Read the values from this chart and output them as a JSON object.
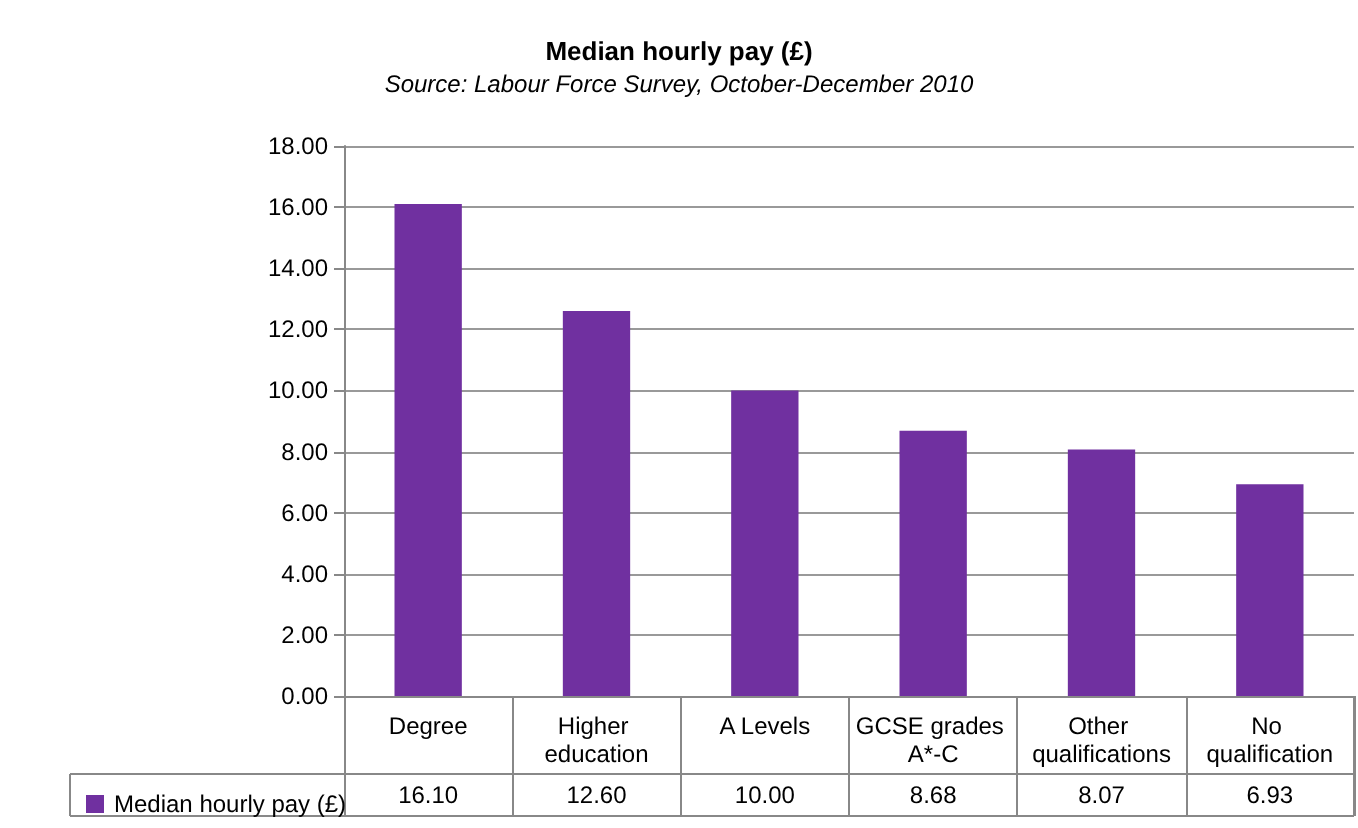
{
  "chart_data": {
    "type": "bar",
    "title": "Median hourly pay (£)",
    "subtitle": "Source: Labour Force Survey, October-December 2010",
    "categories": [
      "Degree",
      "Higher education",
      "A Levels",
      "GCSE grades A*-C",
      "Other qualifications",
      "No qualification"
    ],
    "series": [
      {
        "name": "Median hourly pay (£)",
        "color": "#7030a0",
        "values": [
          16.1,
          12.6,
          10.0,
          8.68,
          8.07,
          6.93
        ],
        "value_labels": [
          "16.10",
          "12.60",
          "10.00",
          "8.68",
          "8.07",
          "6.93"
        ]
      }
    ],
    "ylim": [
      0,
      18
    ],
    "yticks": [
      {
        "value": 0,
        "label": "0.00"
      },
      {
        "value": 2,
        "label": "2.00"
      },
      {
        "value": 4,
        "label": "4.00"
      },
      {
        "value": 6,
        "label": "6.00"
      },
      {
        "value": 8,
        "label": "8.00"
      },
      {
        "value": 10,
        "label": "10.00"
      },
      {
        "value": 12,
        "label": "12.00"
      },
      {
        "value": 14,
        "label": "14.00"
      },
      {
        "value": 16,
        "label": "16.00"
      },
      {
        "value": 18,
        "label": "18.00"
      }
    ],
    "grid": "y",
    "legend": "bottom left"
  }
}
